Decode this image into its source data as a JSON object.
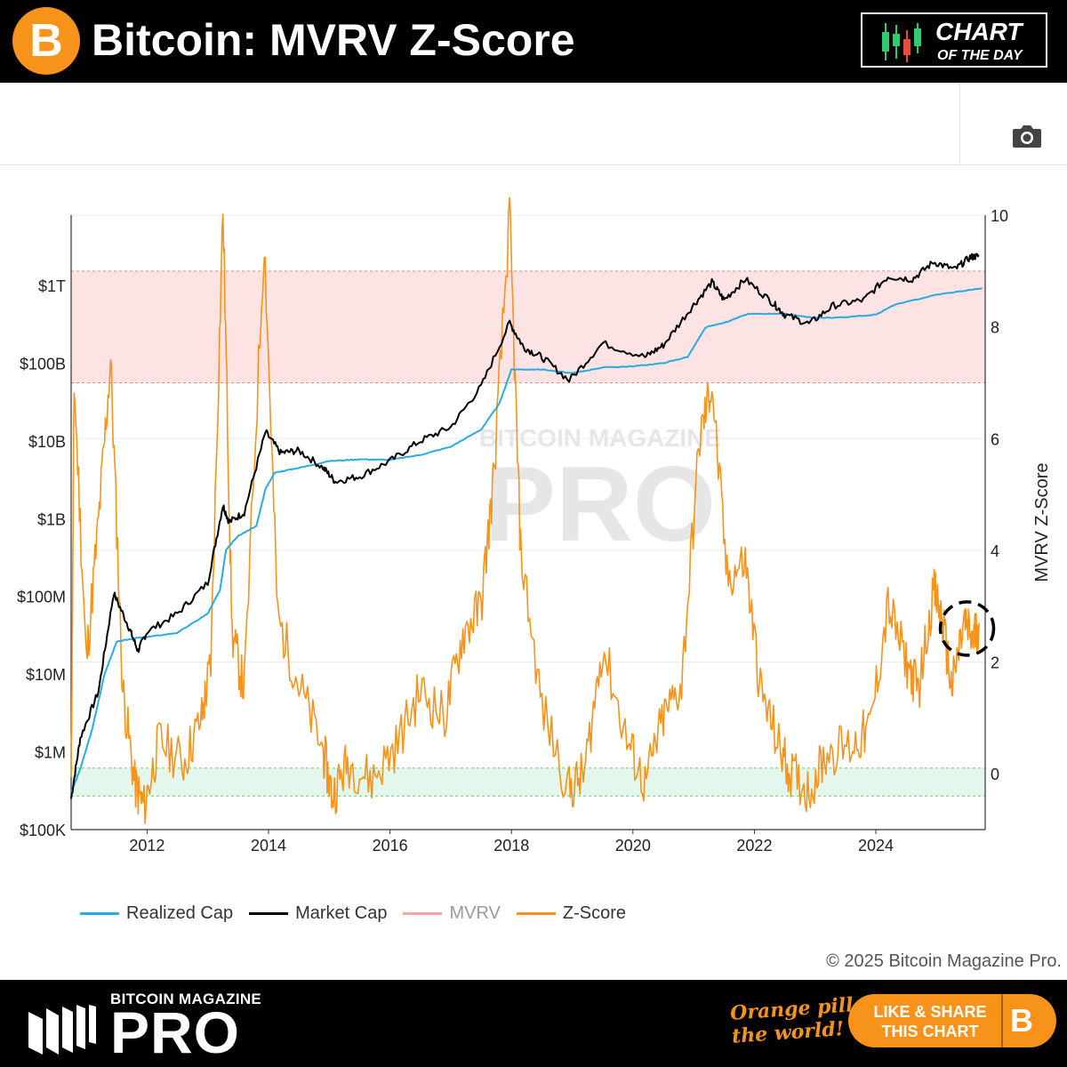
{
  "header": {
    "title": "Bitcoin: MVRV Z-Score",
    "logo_symbol": "B",
    "badge_line1": "CHART",
    "badge_line2": "OF THE DAY"
  },
  "toolbar": {
    "camera_icon": "camera-icon"
  },
  "colors": {
    "realized_cap": "#29abe2",
    "market_cap": "#000000",
    "mvrv": "#f4a6a6",
    "zscore": "#f7931a",
    "red_band": "#fde3e3",
    "green_band": "#e3f7ec",
    "brand_orange": "#f7931a"
  },
  "chart_data": {
    "type": "line",
    "title": "",
    "watermark": [
      "BITCOIN MAGAZINE",
      "PRO"
    ],
    "x_ticks": [
      "2012",
      "2014",
      "2016",
      "2018",
      "2020",
      "2022",
      "2024"
    ],
    "xlim": [
      2010.75,
      2025.8
    ],
    "y_left": {
      "scale": "log",
      "ticks": [
        "$100K",
        "$1M",
        "$10M",
        "$100M",
        "$1B",
        "$10B",
        "$100B",
        "$1T"
      ],
      "tick_values": [
        100000.0,
        1000000.0,
        10000000.0,
        100000000.0,
        1000000000.0,
        10000000000.0,
        100000000000.0,
        1000000000000.0
      ],
      "lim": [
        100000.0,
        8000000000000.0
      ]
    },
    "y_right": {
      "label": "MVRV Z-Score",
      "ticks": [
        "0",
        "2",
        "4",
        "6",
        "8",
        "10"
      ],
      "tick_values": [
        0,
        2,
        4,
        6,
        8,
        10
      ],
      "lim": [
        -1,
        10
      ]
    },
    "bands": [
      {
        "axis": "right",
        "from": 7.0,
        "to": 9.0,
        "color": "red"
      },
      {
        "axis": "right",
        "from": -0.4,
        "to": 0.1,
        "color": "green"
      }
    ],
    "annotation": {
      "type": "dashed-circle",
      "x": 2025.5,
      "y": 2.6
    },
    "legend": {
      "placement": "bottom-left",
      "entries": [
        "Realized Cap",
        "Market Cap",
        "MVRV",
        "Z-Score"
      ]
    },
    "series": [
      {
        "name": "Realized Cap",
        "axis": "left",
        "points": [
          [
            2010.75,
            300000.0
          ],
          [
            2010.9,
            600000.0
          ],
          [
            2011.1,
            2000000.0
          ],
          [
            2011.3,
            10000000.0
          ],
          [
            2011.5,
            26000000.0
          ],
          [
            2011.8,
            29000000.0
          ],
          [
            2012.0,
            30000000.0
          ],
          [
            2012.5,
            34000000.0
          ],
          [
            2013.0,
            60000000.0
          ],
          [
            2013.2,
            120000000.0
          ],
          [
            2013.3,
            400000000.0
          ],
          [
            2013.5,
            600000000.0
          ],
          [
            2013.8,
            800000000.0
          ],
          [
            2013.95,
            2400000000.0
          ],
          [
            2014.1,
            3900000000.0
          ],
          [
            2014.5,
            4500000000.0
          ],
          [
            2015.0,
            5500000000.0
          ],
          [
            2015.5,
            5800000000.0
          ],
          [
            2016.0,
            5700000000.0
          ],
          [
            2016.5,
            6600000000.0
          ],
          [
            2017.0,
            8400000000.0
          ],
          [
            2017.5,
            14000000000.0
          ],
          [
            2017.8,
            30000000000.0
          ],
          [
            2018.0,
            83000000000.0
          ],
          [
            2018.5,
            83000000000.0
          ],
          [
            2019.0,
            74000000000.0
          ],
          [
            2019.5,
            88000000000.0
          ],
          [
            2020.0,
            91000000000.0
          ],
          [
            2020.5,
            100000000000.0
          ],
          [
            2020.9,
            120000000000.0
          ],
          [
            2021.2,
            290000000000.0
          ],
          [
            2021.5,
            330000000000.0
          ],
          [
            2021.9,
            430000000000.0
          ],
          [
            2022.5,
            430000000000.0
          ],
          [
            2023.0,
            380000000000.0
          ],
          [
            2023.5,
            390000000000.0
          ],
          [
            2024.0,
            420000000000.0
          ],
          [
            2024.3,
            560000000000.0
          ],
          [
            2025.0,
            760000000000.0
          ],
          [
            2025.75,
            920000000000.0
          ]
        ]
      },
      {
        "name": "Market Cap",
        "axis": "left",
        "points": [
          [
            2010.75,
            250000.0
          ],
          [
            2010.9,
            1500000.0
          ],
          [
            2011.2,
            6000000.0
          ],
          [
            2011.45,
            110000000.0
          ],
          [
            2011.7,
            40000000.0
          ],
          [
            2011.85,
            20000000.0
          ],
          [
            2012.0,
            35000000.0
          ],
          [
            2012.5,
            60000000.0
          ],
          [
            2013.0,
            150000000.0
          ],
          [
            2013.25,
            1500000000.0
          ],
          [
            2013.35,
            900000000.0
          ],
          [
            2013.6,
            1200000000.0
          ],
          [
            2013.95,
            13000000000.0
          ],
          [
            2014.2,
            7000000000.0
          ],
          [
            2014.5,
            7500000000.0
          ],
          [
            2014.9,
            4500000000.0
          ],
          [
            2015.1,
            3000000000.0
          ],
          [
            2015.5,
            3500000000.0
          ],
          [
            2016.0,
            5500000000.0
          ],
          [
            2016.5,
            10000000000.0
          ],
          [
            2017.0,
            15000000000.0
          ],
          [
            2017.5,
            50000000000.0
          ],
          [
            2017.97,
            330000000000.0
          ],
          [
            2018.2,
            160000000000.0
          ],
          [
            2018.5,
            120000000000.0
          ],
          [
            2018.95,
            60000000000.0
          ],
          [
            2019.5,
            180000000000.0
          ],
          [
            2020.2,
            120000000000.0
          ],
          [
            2020.5,
            170000000000.0
          ],
          [
            2020.95,
            500000000000.0
          ],
          [
            2021.3,
            1100000000000.0
          ],
          [
            2021.5,
            650000000000.0
          ],
          [
            2021.85,
            1200000000000.0
          ],
          [
            2022.3,
            600000000000.0
          ],
          [
            2022.5,
            420000000000.0
          ],
          [
            2022.9,
            320000000000.0
          ],
          [
            2023.3,
            550000000000.0
          ],
          [
            2023.8,
            650000000000.0
          ],
          [
            2024.2,
            1300000000000.0
          ],
          [
            2024.6,
            1200000000000.0
          ],
          [
            2024.95,
            2000000000000.0
          ],
          [
            2025.3,
            1600000000000.0
          ],
          [
            2025.55,
            2300000000000.0
          ],
          [
            2025.7,
            2400000000000.0
          ]
        ]
      },
      {
        "name": "Z-Score",
        "axis": "right",
        "points": [
          [
            2010.75,
            -0.2
          ],
          [
            2010.8,
            7.0
          ],
          [
            2011.0,
            2.0
          ],
          [
            2011.2,
            4.5
          ],
          [
            2011.4,
            7.4
          ],
          [
            2011.6,
            1.5
          ],
          [
            2011.8,
            -0.2
          ],
          [
            2011.95,
            -0.6
          ],
          [
            2012.2,
            0.6
          ],
          [
            2012.6,
            0.2
          ],
          [
            2012.9,
            1.0
          ],
          [
            2013.05,
            2.0
          ],
          [
            2013.25,
            10.1
          ],
          [
            2013.4,
            2.5
          ],
          [
            2013.6,
            1.5
          ],
          [
            2013.93,
            9.6
          ],
          [
            2014.15,
            2.8
          ],
          [
            2014.5,
            1.6
          ],
          [
            2014.9,
            0.4
          ],
          [
            2015.05,
            -0.4
          ],
          [
            2015.3,
            0.2
          ],
          [
            2015.7,
            -0.1
          ],
          [
            2016.1,
            0.5
          ],
          [
            2016.5,
            1.5
          ],
          [
            2016.9,
            1.0
          ],
          [
            2017.2,
            2.5
          ],
          [
            2017.5,
            3.0
          ],
          [
            2017.7,
            5.2
          ],
          [
            2017.97,
            10.0
          ],
          [
            2018.15,
            4.0
          ],
          [
            2018.5,
            1.2
          ],
          [
            2018.95,
            -0.3
          ],
          [
            2019.2,
            0.0
          ],
          [
            2019.5,
            2.3
          ],
          [
            2019.9,
            0.6
          ],
          [
            2020.2,
            -0.2
          ],
          [
            2020.5,
            1.0
          ],
          [
            2020.8,
            1.6
          ],
          [
            2021.1,
            6.0
          ],
          [
            2021.3,
            7.0
          ],
          [
            2021.55,
            3.5
          ],
          [
            2021.85,
            3.8
          ],
          [
            2022.1,
            1.5
          ],
          [
            2022.4,
            0.5
          ],
          [
            2022.6,
            0.0
          ],
          [
            2022.9,
            -0.3
          ],
          [
            2023.2,
            0.4
          ],
          [
            2023.6,
            0.5
          ],
          [
            2023.9,
            0.8
          ],
          [
            2024.2,
            3.0
          ],
          [
            2024.5,
            2.0
          ],
          [
            2024.7,
            1.5
          ],
          [
            2024.95,
            3.3
          ],
          [
            2025.1,
            2.7
          ],
          [
            2025.25,
            1.5
          ],
          [
            2025.45,
            2.7
          ],
          [
            2025.6,
            2.4
          ],
          [
            2025.7,
            2.7
          ]
        ]
      }
    ]
  },
  "legend": [
    {
      "label": "Realized Cap",
      "color": "#29abe2",
      "dim": false
    },
    {
      "label": "Market Cap",
      "color": "#000000",
      "dim": false
    },
    {
      "label": "MVRV",
      "color": "#f4a6a6",
      "dim": true
    },
    {
      "label": "Z-Score",
      "color": "#f7931a",
      "dim": false
    }
  ],
  "copyright": "© 2025 Bitcoin Magazine Pro.",
  "footer": {
    "brand_line1": "BITCOIN MAGAZINE",
    "brand_line2": "PRO",
    "slogan_line1": "Orange pill",
    "slogan_line2": "the world!",
    "share_line1": "LIKE & SHARE",
    "share_line2": "THIS CHART",
    "share_symbol": "B"
  }
}
